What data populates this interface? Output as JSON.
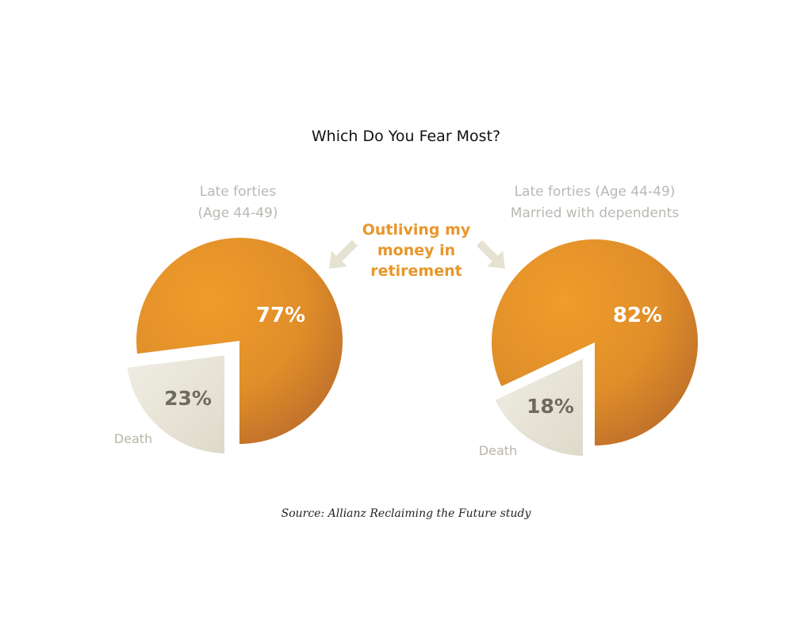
{
  "title": "Which Do You Fear Most?",
  "center_label": [
    "Outliving my",
    "money in",
    "retirement"
  ],
  "source": "Source: Allianz Reclaiming the Future study",
  "colors": {
    "major_slice": "#e8952a",
    "major_slice_dark": "#b8692a",
    "minor_slice": "#ebe8dc",
    "minor_slice_dark": "#dcd8c8",
    "major_text": "#ffffff",
    "minor_text": "#6e6a60",
    "header_text": "#b9b8b3",
    "center_text": "#e8962a",
    "arrow": "#e6e2d2"
  },
  "chart_data": [
    {
      "type": "pie",
      "subtitle": [
        "Late forties",
        "(Age 44-49)"
      ],
      "slices": [
        {
          "label": "",
          "value": 77,
          "value_label": "77%"
        },
        {
          "label": "Death",
          "value": 23,
          "value_label": "23%"
        }
      ]
    },
    {
      "type": "pie",
      "subtitle": [
        "Late forties (Age 44-49)",
        "Married with dependents"
      ],
      "slices": [
        {
          "label": "",
          "value": 82,
          "value_label": "82%"
        },
        {
          "label": "Death",
          "value": 18,
          "value_label": "18%"
        }
      ]
    }
  ]
}
